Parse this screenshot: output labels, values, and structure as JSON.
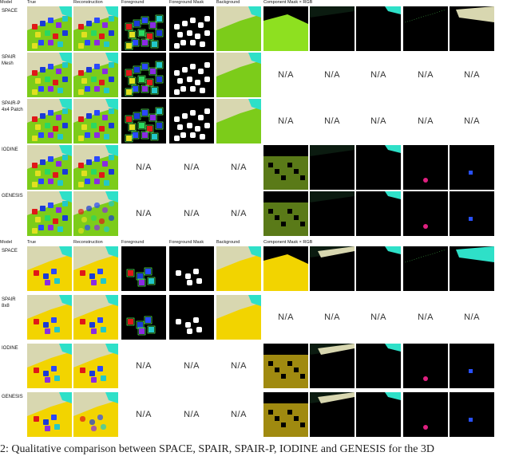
{
  "panel_top": {
    "headers": [
      "Model",
      "True",
      "Reconstruction",
      "Foreground",
      "Foreground Mask",
      "Background",
      "Component Mask × RGB"
    ],
    "rows": [
      {
        "label": "SPACE",
        "na_cols": []
      },
      {
        "label": "SPAIR\nMesh",
        "na_cols": [
          6,
          7,
          8,
          9,
          10
        ]
      },
      {
        "label": "SPAIR-P\n4x4 Patch",
        "na_cols": [
          6,
          7,
          8,
          9,
          10
        ]
      },
      {
        "label": "IODINE",
        "na_cols": [
          3,
          4,
          5
        ]
      },
      {
        "label": "GENESIS",
        "na_cols": [
          3,
          4,
          5
        ]
      }
    ]
  },
  "panel_bottom": {
    "headers": [
      "Model",
      "True",
      "Reconstruction",
      "Foreground",
      "Foreground Mask",
      "Background",
      "Component Mask × RGB"
    ],
    "rows": [
      {
        "label": "SPACE",
        "na_cols": []
      },
      {
        "label": "SPAIR\n8x8",
        "na_cols": [
          6,
          7,
          8,
          9,
          10
        ]
      },
      {
        "label": "IODINE",
        "na_cols": [
          3,
          4,
          5
        ]
      },
      {
        "label": "GENESIS",
        "na_cols": [
          3,
          4,
          5
        ]
      }
    ]
  },
  "na_text": "N/A",
  "caption": "2: Qualitative comparison between SPACE, SPAIR, SPAIR-P, IODINE and GENESIS for the 3D",
  "colors": {
    "floor_green": "#7ccc1a",
    "floor_yellow": "#f2d400",
    "wall": "#d8d7b0",
    "cyan": "#2ee0c8"
  }
}
